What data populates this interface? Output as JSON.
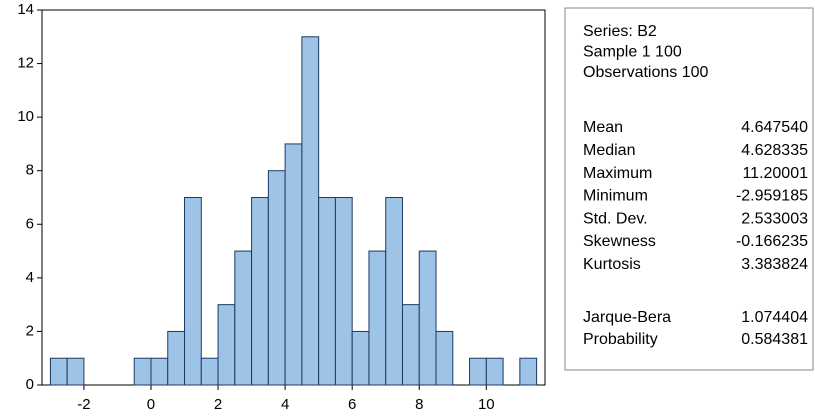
{
  "chart_data": {
    "type": "histogram",
    "bins": [
      -3,
      -2.5,
      -2,
      -1.5,
      -1,
      -0.5,
      0,
      0.5,
      1,
      1.5,
      2,
      2.5,
      3,
      3.5,
      4,
      4.5,
      5,
      5.5,
      6,
      6.5,
      7,
      7.5,
      8,
      8.5,
      9,
      9.5,
      10,
      10.5,
      11,
      11.5
    ],
    "values": [
      1,
      1,
      0,
      0,
      0,
      1,
      1,
      2,
      7,
      1,
      3,
      5,
      7,
      8,
      9,
      13,
      7,
      7,
      2,
      5,
      7,
      3,
      5,
      2,
      0,
      1,
      1,
      0,
      1
    ],
    "color": "#9dc3e6",
    "edge_color": "#1f3864",
    "xlim": [
      -3.25,
      11.75
    ],
    "xticks": [
      -2,
      0,
      2,
      4,
      6,
      8,
      10
    ],
    "ylim": [
      0,
      14
    ],
    "yticks": [
      0,
      2,
      4,
      6,
      8,
      10,
      12,
      14
    ]
  },
  "stats": {
    "header": [
      "Series: B2",
      "Sample 1 100",
      "Observations 100"
    ],
    "rows": [
      [
        "Mean",
        "4.647540"
      ],
      [
        "Median",
        "4.628335"
      ],
      [
        "Maximum",
        "11.20001"
      ],
      [
        "Minimum",
        "-2.959185"
      ],
      [
        "Std. Dev.",
        "2.533003"
      ],
      [
        "Skewness",
        "-0.166235"
      ],
      [
        "Kurtosis",
        "3.383824"
      ]
    ],
    "tests": [
      [
        "Jarque-Bera",
        "1.074404"
      ],
      [
        "Probability",
        "0.584381"
      ]
    ]
  }
}
